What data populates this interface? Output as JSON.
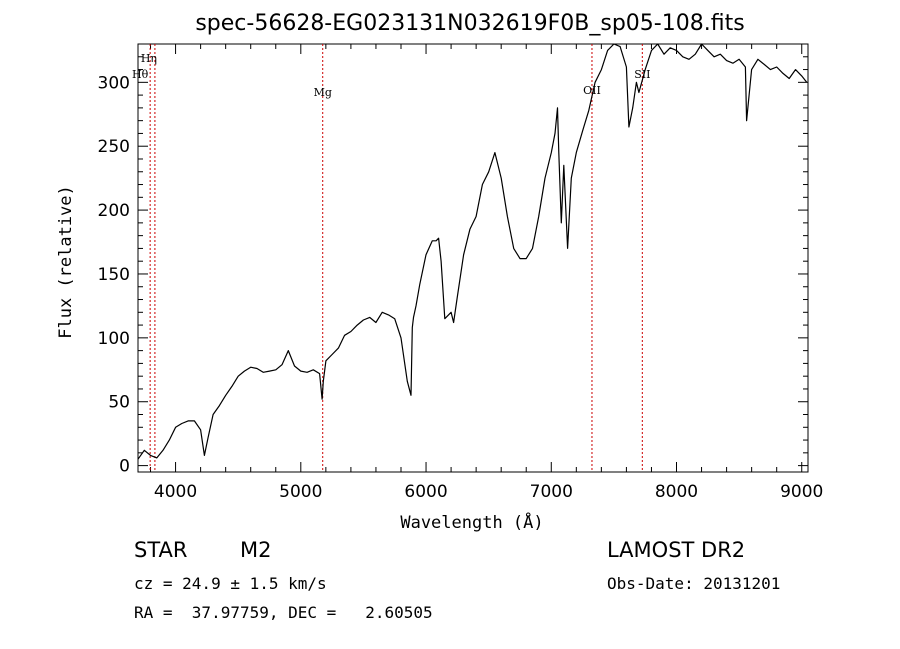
{
  "chart_data": {
    "type": "line",
    "title": "spec-56628-EG023131N032619F0B_sp05-108.fits",
    "xlabel": "Wavelength (Å)",
    "ylabel": "Flux (relative)",
    "xlim": [
      3700,
      9050
    ],
    "ylim": [
      -5,
      330
    ],
    "xticks": [
      4000,
      5000,
      6000,
      7000,
      8000,
      9000
    ],
    "yticks": [
      0,
      50,
      100,
      150,
      200,
      250,
      300
    ],
    "grid": false,
    "line_color": "#000000",
    "marker_color": "#cc0000",
    "spectral_lines": [
      {
        "label": "Hη",
        "wavelength": 3835
      },
      {
        "label": "Hθ",
        "wavelength": 3797
      },
      {
        "label": "Mg",
        "wavelength": 5175
      },
      {
        "label": "OII",
        "wavelength": 7325
      },
      {
        "label": "SII",
        "wavelength": 7727
      }
    ],
    "series": [
      {
        "x": [
          3700,
          3750,
          3800,
          3850,
          3900,
          3950,
          4000,
          4050,
          4100,
          4150,
          4200,
          4230,
          4260,
          4300,
          4350,
          4400,
          4450,
          4500,
          4550,
          4600,
          4650,
          4700,
          4750,
          4800,
          4850,
          4900,
          4950,
          5000,
          5050,
          5100,
          5150,
          5170,
          5180,
          5200,
          5250,
          5300,
          5350,
          5400,
          5450,
          5500,
          5550,
          5600,
          5650,
          5700,
          5750,
          5800,
          5850,
          5880,
          5890,
          5900,
          5920,
          5950,
          6000,
          6050,
          6080,
          6100,
          6120,
          6150,
          6200,
          6220,
          6250,
          6300,
          6350,
          6400,
          6450,
          6500,
          6550,
          6600,
          6650,
          6700,
          6750,
          6800,
          6850,
          6900,
          6950,
          7000,
          7030,
          7050,
          7060,
          7080,
          7100,
          7130,
          7160,
          7200,
          7250,
          7300,
          7350,
          7400,
          7450,
          7500,
          7550,
          7600,
          7620,
          7650,
          7680,
          7700,
          7750,
          7800,
          7850,
          7900,
          7950,
          8000,
          8050,
          8100,
          8150,
          8200,
          8250,
          8300,
          8350,
          8400,
          8450,
          8500,
          8550,
          8560,
          8600,
          8650,
          8700,
          8750,
          8800,
          8850,
          8900,
          8950,
          9000,
          9040
        ],
        "y": [
          5,
          12,
          8,
          6,
          12,
          20,
          30,
          33,
          35,
          35,
          28,
          8,
          22,
          40,
          47,
          55,
          62,
          70,
          74,
          77,
          76,
          73,
          74,
          75,
          79,
          90,
          78,
          74,
          73,
          75,
          72,
          52,
          66,
          82,
          87,
          92,
          102,
          105,
          110,
          114,
          116,
          112,
          120,
          118,
          115,
          100,
          66,
          55,
          108,
          116,
          125,
          142,
          165,
          176,
          176,
          178,
          160,
          115,
          120,
          112,
          132,
          165,
          185,
          195,
          220,
          230,
          245,
          225,
          195,
          170,
          162,
          162,
          170,
          195,
          225,
          245,
          260,
          280,
          245,
          190,
          235,
          170,
          225,
          245,
          262,
          278,
          300,
          310,
          325,
          330,
          328,
          312,
          265,
          280,
          300,
          292,
          310,
          325,
          330,
          322,
          327,
          325,
          320,
          318,
          322,
          330,
          325,
          320,
          322,
          317,
          315,
          318,
          312,
          270,
          310,
          318,
          314,
          310,
          312,
          307,
          303,
          310,
          305,
          300
        ]
      }
    ],
    "footer": {
      "class_label": "STAR",
      "subclass_label": "M2",
      "survey": "LAMOST DR2",
      "cz_text": "cz = 24.9 ± 1.5 km/s",
      "obs_date_text": "Obs-Date: 20131201",
      "coords_text": "RA =  37.97759, DEC =   2.60505"
    }
  }
}
